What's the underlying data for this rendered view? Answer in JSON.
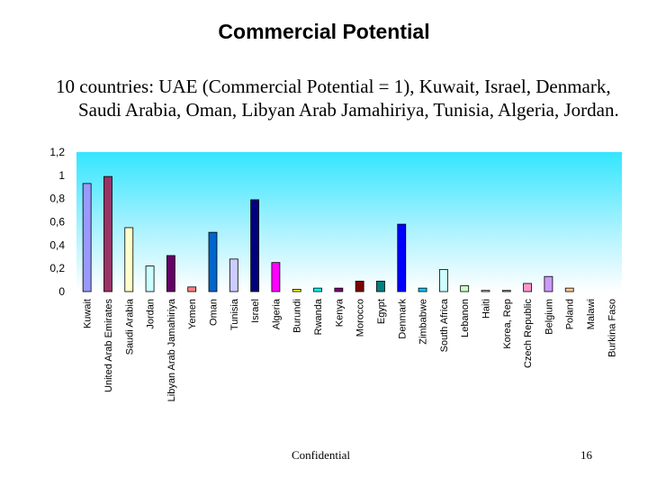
{
  "slide": {
    "title": "Commercial Potential",
    "bullet": "10 countries: UAE (Commercial Potential = 1), Kuwait, Israel, Denmark, Saudi Arabia, Oman, Libyan Arab Jamahiriya, Tunisia, Algeria, Jordan.",
    "footer": "Confidential",
    "page_number": "16"
  },
  "chart_data": {
    "type": "bar",
    "title": "",
    "xlabel": "",
    "ylabel": "",
    "ylim": [
      0,
      1.2
    ],
    "yticks": [
      "0",
      "0,2",
      "0,4",
      "0,6",
      "0,8",
      "1",
      "1,2"
    ],
    "grid": false,
    "background": "gradient cyan-to-white",
    "categories": [
      "Kuwait",
      "United Arab Emirates",
      "Saudi Arabia",
      "Jordan",
      "Libyan Arab Jamahiriya",
      "Yemen",
      "Oman",
      "Tunisia",
      "Israel",
      "Algeria",
      "Burundi",
      "Rwanda",
      "Kenya",
      "Morocco",
      "Egypt",
      "Denmark",
      "Zimbabwe",
      "South Africa",
      "Lebanon",
      "Haiti",
      "Korea, Rep",
      "Czech Republic",
      "Belgium",
      "Poland",
      "Malawi",
      "Burkina Faso"
    ],
    "values": [
      0.93,
      0.99,
      0.55,
      0.22,
      0.31,
      0.04,
      0.51,
      0.28,
      0.79,
      0.25,
      0.02,
      0.03,
      0.03,
      0.09,
      0.09,
      0.58,
      0.03,
      0.19,
      0.05,
      0.01,
      0.01,
      0.07,
      0.13,
      0.03,
      0.0,
      0.0
    ],
    "colors": [
      "#9999ff",
      "#993366",
      "#ffffcc",
      "#ccffff",
      "#660066",
      "#ff8080",
      "#0066cc",
      "#ccccff",
      "#000080",
      "#ff00ff",
      "#ffff00",
      "#00ffff",
      "#800080",
      "#800000",
      "#008080",
      "#0000ff",
      "#00ccff",
      "#ccffff",
      "#ccffcc",
      "#ffff99",
      "#99ccff",
      "#ff99cc",
      "#cc99ff",
      "#ffcc99",
      "#3366ff",
      "#33cccc"
    ]
  }
}
